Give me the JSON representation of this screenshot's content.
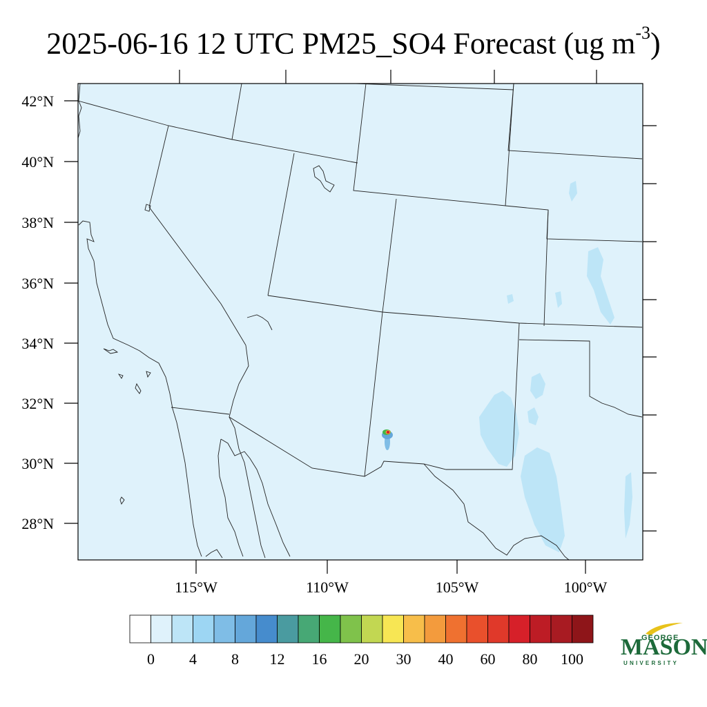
{
  "title": {
    "text": "2025-06-16 12 UTC PM25_SO4 Forecast (ug m",
    "exponent": "-3",
    "close": ")"
  },
  "map": {
    "background_color": "#dff2fb",
    "lat_labels": [
      "42°N",
      "40°N",
      "38°N",
      "36°N",
      "34°N",
      "32°N",
      "30°N",
      "28°N"
    ],
    "lon_labels": [
      "115°W",
      "110°W",
      "105°W",
      "100°W"
    ]
  },
  "colorbar": {
    "colors": [
      "#ffffff",
      "#dff2fb",
      "#bde5f7",
      "#9dd6f3",
      "#7fbde6",
      "#64a7da",
      "#468ccd",
      "#4a9ba0",
      "#47a875",
      "#45b649",
      "#7fc24b",
      "#c2d752",
      "#f7e654",
      "#f7be4a",
      "#f39b3d",
      "#ef7130",
      "#e9502c",
      "#e0392a",
      "#d62029",
      "#bd1c25",
      "#a81b22",
      "#8e1519"
    ],
    "labels": [
      "0",
      "4",
      "8",
      "12",
      "16",
      "20",
      "30",
      "40",
      "60",
      "80",
      "100"
    ]
  },
  "logo": {
    "line1": "GEORGE",
    "line2": "MASON",
    "line3": "UNIVERSITY"
  }
}
